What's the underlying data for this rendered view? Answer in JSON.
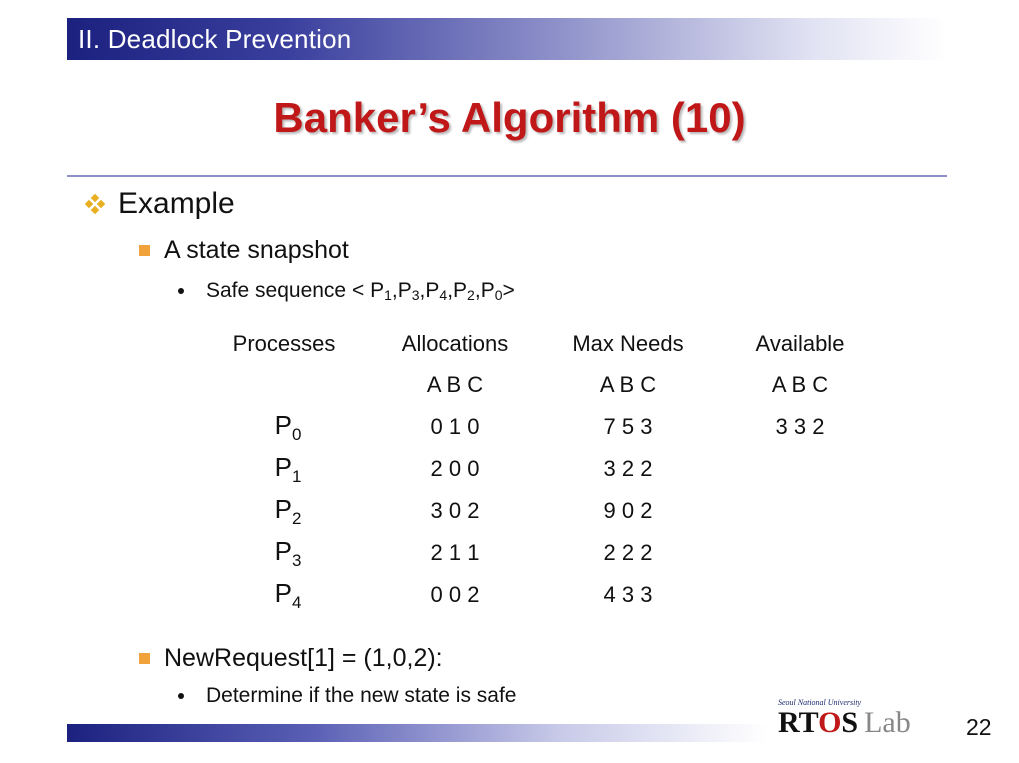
{
  "header": {
    "section": "II. Deadlock Prevention",
    "title": "Banker’s Algorithm (10)"
  },
  "bullets": {
    "example": "Example",
    "snapshot": "A state snapshot",
    "safe_prefix": "Safe sequence <",
    "safe_sequence": [
      {
        "p": "P",
        "n": "1"
      },
      {
        "p": "P",
        "n": "3"
      },
      {
        "p": "P",
        "n": "4"
      },
      {
        "p": "P",
        "n": "2"
      },
      {
        "p": "P",
        "n": "0"
      }
    ],
    "safe_suffix": ">",
    "new_request": "NewRequest[1] = (1,0,2):",
    "determine": "Determine if the new state is safe"
  },
  "table": {
    "headers": [
      "Processes",
      "Allocations",
      "Max Needs",
      "Available"
    ],
    "resource_labels": "A B C",
    "rows": [
      {
        "p": "P",
        "n": "0",
        "alloc": "0 1 0",
        "max": "7 5 3",
        "avail": "3 3 2"
      },
      {
        "p": "P",
        "n": "1",
        "alloc": "2 0 0",
        "max": "3 2 2",
        "avail": ""
      },
      {
        "p": "P",
        "n": "2",
        "alloc": "3 0 2",
        "max": "9 0 2",
        "avail": ""
      },
      {
        "p": "P",
        "n": "3",
        "alloc": "2 1 1",
        "max": "2 2 2",
        "avail": ""
      },
      {
        "p": "P",
        "n": "4",
        "alloc": "0 0 2",
        "max": "4 3 3",
        "avail": ""
      }
    ]
  },
  "footer": {
    "logo_caption": "Seoul National University",
    "logo_r": "RT",
    "logo_o": "O",
    "logo_s": "S",
    "logo_lab": "Lab",
    "page": "22"
  },
  "colors": {
    "title_red": "#c01818",
    "bar_navy": "#1c2180",
    "bullet_gold": "#e8b020",
    "bullet_orange": "#f2a23a"
  },
  "icons": {
    "level1": "diamond-cluster-icon",
    "level2": "square-bullet-icon",
    "level3": "dot-bullet-icon"
  }
}
